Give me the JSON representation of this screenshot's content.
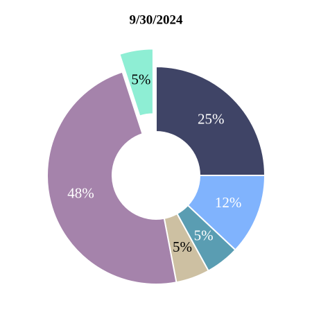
{
  "chart_data": {
    "type": "pie",
    "title": "9/30/2024",
    "values": [
      25,
      12,
      5,
      5,
      48,
      5
    ],
    "value_labels": [
      "25%",
      "12%",
      "5%",
      "5%",
      "48%",
      "5%"
    ],
    "colors": [
      "#3f4466",
      "#80b3fd",
      "#5a9db2",
      "#cdc0a2",
      "#a583ab",
      "#8eeed4"
    ],
    "explode": [
      false,
      false,
      false,
      false,
      false,
      true
    ],
    "donut": true
  }
}
